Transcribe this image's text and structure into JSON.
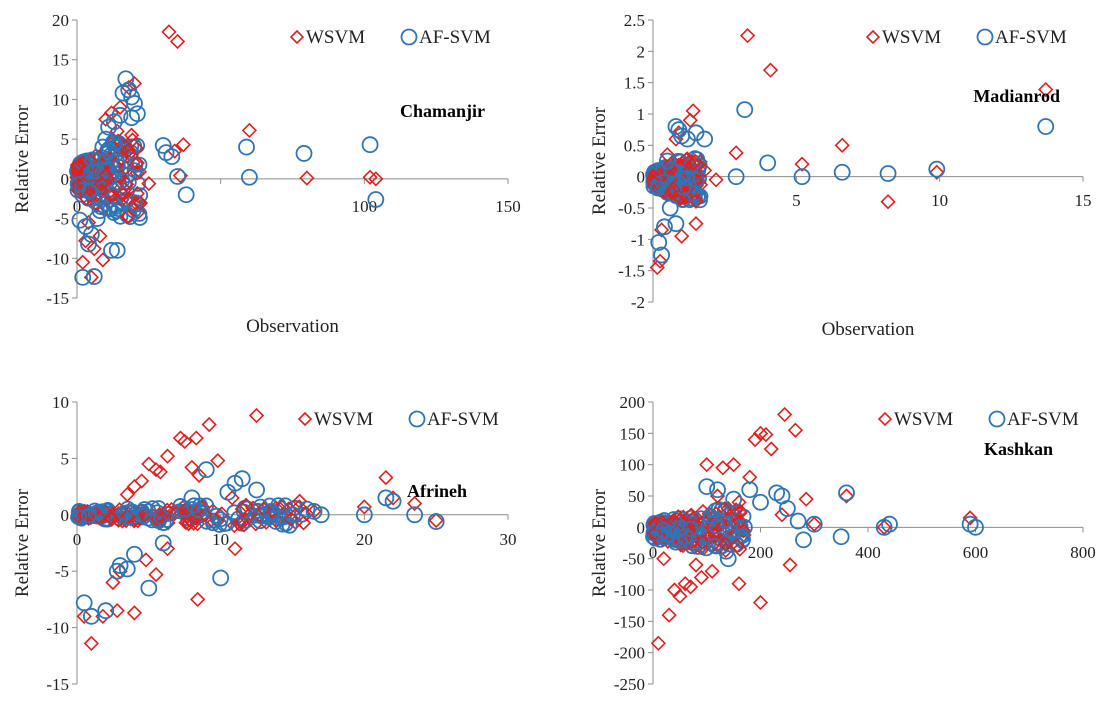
{
  "colors": {
    "wsvm": "#e02020",
    "afsvm": "#2e75b6",
    "axis": "#8c8c8c",
    "text": "#222222"
  },
  "chart_data": [
    {
      "type": "scatter",
      "label": "Chamanjir",
      "xlabel": "Observation",
      "ylabel": "Relative Error",
      "xlim": [
        0,
        150
      ],
      "ylim": [
        -15,
        20
      ],
      "x_ticks": [
        0,
        50,
        100,
        150
      ],
      "x_tick_labels": [
        "0",
        "",
        "100",
        "150"
      ],
      "y_ticks": [
        -15,
        -10,
        -5,
        0,
        5,
        10,
        15,
        20
      ],
      "legend": [
        "WSVM",
        "AF-SVM"
      ],
      "cluster": {
        "x": [
          0,
          22
        ],
        "y": [
          -5,
          5
        ]
      },
      "series": [
        {
          "name": "WSVM",
          "marker": "diamond",
          "x": [
            32,
            35,
            60,
            37,
            34,
            36,
            80,
            102,
            104,
            20,
            18,
            15,
            12,
            10,
            14,
            6,
            5,
            9,
            8,
            3,
            2,
            4,
            22,
            18,
            16,
            19,
            17,
            21,
            25
          ],
          "y": [
            18.5,
            17.3,
            6.1,
            4.3,
            3.5,
            0.4,
            0.1,
            0.2,
            0.0,
            12.0,
            11.5,
            9.0,
            8.3,
            7.5,
            6.0,
            -8.8,
            -12.4,
            -10.2,
            -7.2,
            -7.8,
            -10.5,
            -5.5,
            -3.0,
            -2.5,
            -2.0,
            5.5,
            4.0,
            2.0,
            -0.6
          ]
        },
        {
          "name": "AF-SVM",
          "marker": "circle",
          "x": [
            17,
            18,
            19,
            20,
            16,
            15,
            13,
            11,
            10,
            9,
            12,
            14,
            3,
            5,
            7,
            8,
            12,
            14,
            20,
            30,
            31,
            33,
            35,
            38,
            59,
            60,
            79,
            102,
            104,
            21,
            19,
            6,
            2,
            1,
            4,
            13
          ],
          "y": [
            12.6,
            11.2,
            10.3,
            9.5,
            10.8,
            8.0,
            7.2,
            6.5,
            5.0,
            4.0,
            3.0,
            2.0,
            -6.0,
            -7.0,
            -5.0,
            -4.0,
            -9.0,
            -9.0,
            -3.0,
            4.2,
            3.3,
            2.8,
            0.3,
            -2.0,
            4.0,
            0.2,
            3.2,
            4.3,
            -2.6,
            8.2,
            7.7,
            -12.3,
            -12.4,
            -5.2,
            -8.2,
            4.5
          ]
        }
      ]
    },
    {
      "type": "scatter",
      "label": "Madianrod",
      "xlabel": "Observation",
      "ylabel": "Relative Error",
      "xlim": [
        0,
        15
      ],
      "ylim": [
        -2,
        2.5
      ],
      "x_ticks": [
        0,
        5,
        10,
        15
      ],
      "x_tick_labels": [
        "",
        "5",
        "10",
        "15"
      ],
      "y_ticks": [
        -2,
        -1.5,
        -1,
        -0.5,
        0,
        0.5,
        1,
        1.5,
        2,
        2.5
      ],
      "legend": [
        "WSVM",
        "AF-SVM"
      ],
      "cluster": {
        "x": [
          0,
          1.7
        ],
        "y": [
          -0.4,
          0.3
        ]
      },
      "series": [
        {
          "name": "WSVM",
          "marker": "diamond",
          "x": [
            3.3,
            4.1,
            1.4,
            1.3,
            0.9,
            0.8,
            2.9,
            5.2,
            6.6,
            8.2,
            9.9,
            13.7,
            0.5,
            0.15,
            0.25,
            1.5,
            1.0,
            0.7,
            0.3,
            1.8,
            2.2
          ],
          "y": [
            2.25,
            1.7,
            1.05,
            0.9,
            0.7,
            0.6,
            0.38,
            0.2,
            0.5,
            -0.4,
            0.07,
            1.39,
            0.35,
            -1.45,
            -1.35,
            -0.75,
            -0.95,
            -0.2,
            -0.85,
            0.1,
            -0.05
          ]
        },
        {
          "name": "AF-SVM",
          "marker": "circle",
          "x": [
            3.2,
            0.8,
            0.9,
            1.0,
            1.2,
            1.5,
            1.8,
            4.0,
            5.2,
            6.6,
            8.2,
            9.9,
            13.7,
            0.4,
            0.2,
            0.3,
            0.8,
            0.6,
            2.9,
            0.5
          ],
          "y": [
            1.07,
            0.8,
            0.75,
            0.65,
            0.6,
            0.7,
            0.6,
            0.22,
            0.0,
            0.07,
            0.05,
            0.12,
            0.8,
            -0.8,
            -1.05,
            -1.25,
            -0.75,
            -0.5,
            0.0,
            0.25
          ]
        }
      ]
    },
    {
      "type": "scatter",
      "label": "Afrineh",
      "xlabel": "",
      "ylabel": "Relative Error",
      "xlim": [
        0,
        30
      ],
      "ylim": [
        -15,
        10
      ],
      "x_ticks": [
        0,
        10,
        20,
        30
      ],
      "x_tick_labels": [
        "0",
        "10",
        "20",
        "30"
      ],
      "y_ticks": [
        -15,
        -10,
        -5,
        0,
        5,
        10
      ],
      "legend": [
        "WSVM",
        "AF-SVM"
      ],
      "cluster": {
        "x": [
          0,
          16
        ],
        "y": [
          -1,
          1
        ]
      },
      "series": [
        {
          "name": "WSVM",
          "marker": "diamond",
          "x": [
            12.5,
            9.2,
            8.3,
            7.2,
            7.5,
            8.0,
            6.3,
            5.5,
            5.0,
            5.8,
            4.5,
            4.0,
            3.5,
            8.5,
            9.8,
            10.8,
            11.5,
            21.5,
            22.0,
            23.5,
            20.0,
            15.5,
            16.5,
            25.0,
            13.0,
            1.0,
            0.5,
            1.8,
            2.5,
            3.0,
            4.8,
            5.5,
            6.3,
            8.4,
            11.0,
            2.8,
            4.0
          ],
          "y": [
            8.8,
            8.0,
            6.8,
            6.8,
            6.5,
            4.2,
            5.2,
            4.0,
            4.5,
            3.8,
            3.0,
            2.5,
            1.8,
            3.5,
            4.8,
            1.5,
            0.5,
            3.3,
            1.5,
            1.0,
            0.7,
            1.2,
            0.3,
            -0.5,
            0.5,
            -11.4,
            -9.0,
            -9.0,
            -6.0,
            -5.0,
            -4.0,
            -5.3,
            -3.0,
            -7.5,
            -3.0,
            -8.5,
            -8.7
          ]
        },
        {
          "name": "AF-SVM",
          "marker": "circle",
          "x": [
            11.5,
            11.0,
            10.5,
            9.0,
            12.5,
            13.5,
            15.0,
            16.0,
            16.5,
            17.0,
            21.5,
            22.0,
            23.5,
            25.0,
            20.0,
            3.5,
            4.0,
            2.8,
            1.0,
            0.5,
            2.0,
            3.0,
            10.0,
            6.0,
            5.0,
            8.0,
            7.5
          ],
          "y": [
            3.2,
            2.8,
            2.0,
            4.0,
            2.2,
            0.3,
            0.0,
            0.5,
            0.3,
            0.0,
            1.5,
            1.2,
            0.0,
            -0.6,
            0.0,
            -4.8,
            -3.5,
            -5.0,
            -9.0,
            -7.8,
            -8.5,
            -4.5,
            -5.6,
            -2.5,
            -6.5,
            1.5,
            0.5
          ]
        }
      ]
    },
    {
      "type": "scatter",
      "label": "Kashkan",
      "xlabel": "",
      "ylabel": "Relative Error",
      "xlim": [
        0,
        800
      ],
      "ylim": [
        -250,
        200
      ],
      "x_ticks": [
        0,
        200,
        400,
        600,
        800
      ],
      "x_tick_labels": [
        "0",
        "200",
        "400",
        "600",
        "800"
      ],
      "y_ticks": [
        -250,
        -200,
        -150,
        -100,
        -50,
        0,
        50,
        100,
        150,
        200
      ],
      "legend": [
        "WSVM",
        "AF-SVM"
      ],
      "cluster": {
        "x": [
          0,
          170
        ],
        "y": [
          -40,
          30
        ]
      },
      "series": [
        {
          "name": "WSVM",
          "marker": "diamond",
          "x": [
            245,
            265,
            200,
            210,
            190,
            220,
            180,
            150,
            130,
            100,
            120,
            160,
            140,
            240,
            285,
            300,
            360,
            430,
            590,
            10,
            30,
            50,
            70,
            90,
            110,
            160,
            200,
            255,
            60,
            40,
            20,
            80
          ],
          "y": [
            180,
            155,
            150,
            148,
            140,
            125,
            80,
            100,
            95,
            100,
            50,
            40,
            30,
            20,
            45,
            5,
            50,
            0,
            15,
            -185,
            -140,
            -110,
            -95,
            -80,
            -70,
            -90,
            -120,
            -60,
            -90,
            -100,
            -50,
            -60
          ]
        },
        {
          "name": "AF-SVM",
          "marker": "circle",
          "x": [
            180,
            200,
            230,
            240,
            250,
            270,
            300,
            360,
            430,
            440,
            590,
            600,
            100,
            120,
            150,
            20,
            30,
            60,
            280,
            350,
            170,
            140
          ],
          "y": [
            60,
            40,
            55,
            50,
            30,
            10,
            5,
            55,
            0,
            5,
            5,
            0,
            65,
            60,
            45,
            -5,
            -10,
            -15,
            -20,
            -15,
            0,
            -50
          ]
        }
      ]
    }
  ]
}
